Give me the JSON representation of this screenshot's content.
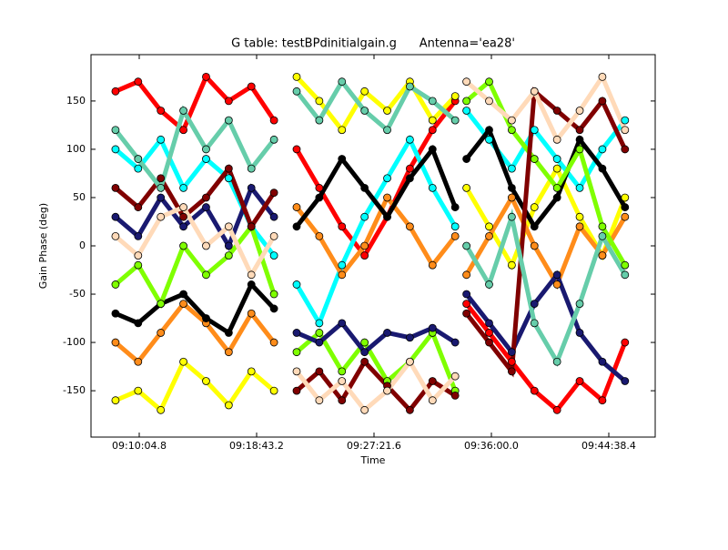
{
  "chart_data": {
    "type": "scatter",
    "title": "G table: testBPdinitialgain.g      Antenna='ea28'",
    "xlabel": "Time",
    "ylabel": "Gain Phase (deg)",
    "connect": true,
    "xlim": [
      32791.8,
      35283.4
    ],
    "ylim": [
      -198,
      198
    ],
    "xticks": [
      {
        "value": 33004.8,
        "label": "09:10:04.8"
      },
      {
        "value": 33523.2,
        "label": "09:18:43.2"
      },
      {
        "value": 34041.6,
        "label": "09:27:21.6"
      },
      {
        "value": 34560,
        "label": "09:36:00.0"
      },
      {
        "value": 35078.4,
        "label": "09:44:38.4"
      }
    ],
    "yticks": [
      -150,
      -100,
      -50,
      0,
      50,
      100,
      150
    ],
    "x": [
      32900,
      33000,
      33100,
      33200,
      33300,
      33400,
      33500,
      33600,
      33650,
      33700,
      33800,
      33900,
      34000,
      34100,
      34200,
      34300,
      34400,
      34425,
      34450,
      34550,
      34650,
      34750,
      34850,
      34950,
      35050,
      35150
    ],
    "series": [
      {
        "name": "red",
        "color": "#ff0000",
        "values": [
          160,
          170,
          140,
          120,
          175,
          150,
          165,
          130,
          null,
          100,
          60,
          20,
          -10,
          30,
          80,
          120,
          150,
          null,
          -60,
          -90,
          -120,
          -150,
          -170,
          -140,
          -160,
          -100
        ]
      },
      {
        "name": "yellow",
        "color": "#ffff00",
        "values": [
          -160,
          -150,
          -170,
          -120,
          -140,
          -165,
          -130,
          -150,
          null,
          175,
          150,
          120,
          160,
          140,
          170,
          130,
          155,
          null,
          60,
          20,
          -20,
          40,
          80,
          30,
          -10,
          50
        ]
      },
      {
        "name": "cyan",
        "color": "#00ffff",
        "values": [
          100,
          80,
          110,
          60,
          90,
          70,
          20,
          -10,
          null,
          -40,
          -80,
          -20,
          30,
          70,
          110,
          60,
          20,
          null,
          140,
          110,
          80,
          120,
          90,
          60,
          100,
          130
        ]
      },
      {
        "name": "orange",
        "color": "#ff8c1a",
        "values": [
          -100,
          -120,
          -90,
          -60,
          -80,
          -110,
          -70,
          -100,
          null,
          40,
          10,
          -30,
          0,
          50,
          20,
          -20,
          10,
          null,
          -30,
          10,
          50,
          0,
          -40,
          20,
          -10,
          30
        ]
      },
      {
        "name": "black",
        "color": "#000000",
        "values": [
          -70,
          -80,
          -60,
          -50,
          -75,
          -90,
          -40,
          -65,
          null,
          20,
          50,
          90,
          60,
          30,
          70,
          100,
          40,
          null,
          90,
          120,
          60,
          20,
          50,
          110,
          80,
          40
        ]
      },
      {
        "name": "lime",
        "color": "#7fff00",
        "values": [
          -40,
          -20,
          -60,
          0,
          -30,
          -10,
          20,
          -50,
          null,
          -110,
          -90,
          -130,
          -100,
          -140,
          -120,
          -90,
          -150,
          null,
          150,
          170,
          120,
          90,
          60,
          100,
          20,
          -20
        ]
      },
      {
        "name": "navy",
        "color": "#191970",
        "values": [
          30,
          10,
          50,
          20,
          40,
          0,
          60,
          30,
          null,
          -90,
          -100,
          -80,
          -110,
          -90,
          -95,
          -85,
          -100,
          null,
          -50,
          -80,
          -110,
          -60,
          -30,
          -90,
          -120,
          -140
        ]
      },
      {
        "name": "maroon",
        "color": "#800000",
        "values": [
          60,
          40,
          70,
          30,
          50,
          80,
          20,
          55,
          null,
          -150,
          -130,
          -160,
          -120,
          -145,
          -170,
          -140,
          -155,
          null,
          -70,
          -100,
          -130,
          160,
          140,
          120,
          150,
          100
        ]
      },
      {
        "name": "peach",
        "color": "#ffdab9",
        "values": [
          10,
          -10,
          30,
          40,
          0,
          20,
          -30,
          10,
          null,
          -130,
          -160,
          -140,
          -170,
          -150,
          -120,
          -160,
          -135,
          null,
          170,
          150,
          130,
          160,
          110,
          140,
          175,
          120
        ]
      },
      {
        "name": "aquamarine",
        "color": "#66cdaa",
        "values": [
          120,
          90,
          60,
          140,
          100,
          130,
          80,
          110,
          null,
          160,
          130,
          170,
          140,
          120,
          165,
          150,
          130,
          null,
          0,
          -40,
          30,
          -80,
          -120,
          -60,
          10,
          -30
        ]
      }
    ]
  }
}
